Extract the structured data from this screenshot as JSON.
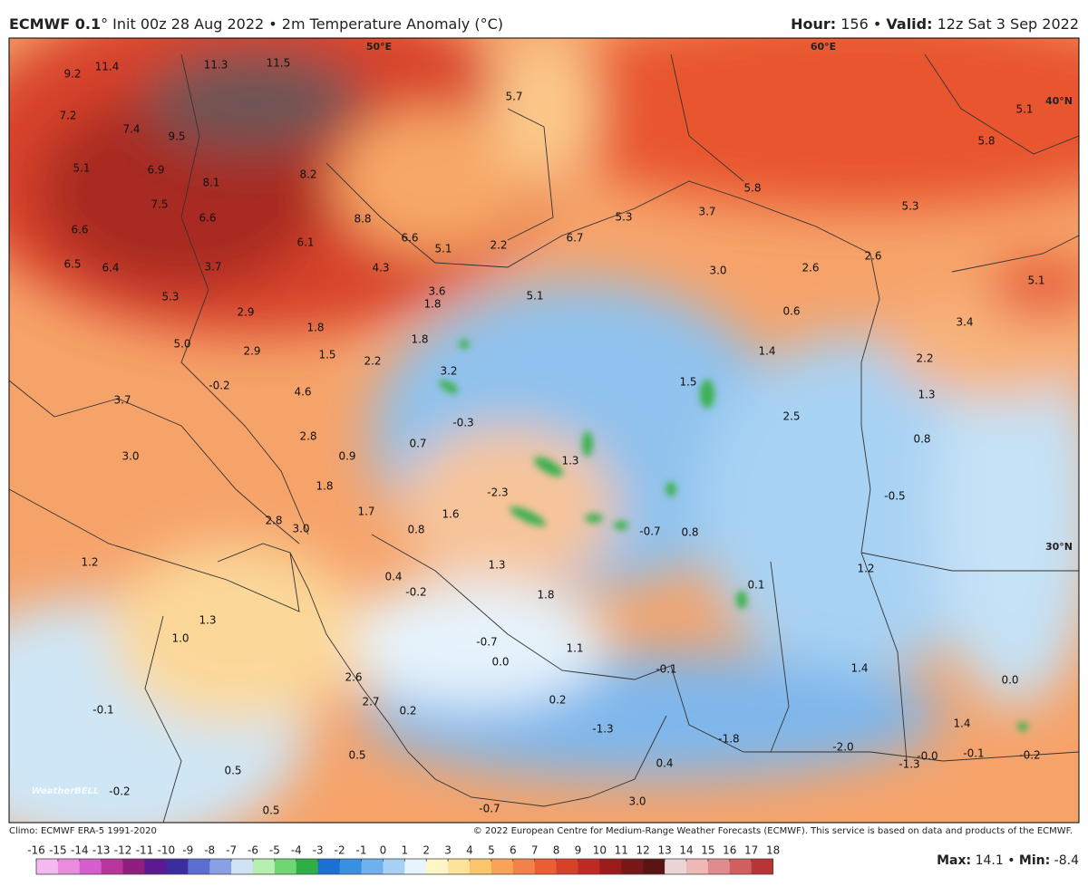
{
  "header": {
    "title_bold": "ECMWF 0.1",
    "title_rest": "° Init 00z 28 Aug 2022 • 2m Temperature Anomaly (°C)",
    "hour_label": "Hour:",
    "hour": "156",
    "separator": "•",
    "valid_label": "Valid:",
    "valid": "12z Sat 3 Sep 2022"
  },
  "map": {
    "graticule": [
      "50°E",
      "60°E",
      "40°N",
      "30°N"
    ],
    "labels": [
      "9.2",
      "11.4",
      "11.3",
      "11.5",
      "7.2",
      "7.4",
      "9.5",
      "5.7",
      "5.1",
      "5.8",
      "5.1",
      "6.9",
      "8.1",
      "8.2",
      "7.5",
      "6.6",
      "8.8",
      "5.8",
      "5.3",
      "6.6",
      "6.1",
      "6.6",
      "5.1",
      "2.2",
      "6.7",
      "5.3",
      "3.7",
      "6.5",
      "6.4",
      "3.7",
      "4.3",
      "3.0",
      "2.6",
      "2.6",
      "5.3",
      "3.6",
      "5.1",
      "1.8",
      "0.6",
      "5.1",
      "2.9",
      "1.8",
      "3.4",
      "5.0",
      "2.9",
      "1.5",
      "1.8",
      "1.4",
      "2.2",
      "3.2",
      "2.2",
      "-0.2",
      "4.6",
      "1.5",
      "1.3",
      "3.7",
      "2.5",
      "-0.3",
      "2.8",
      "0.7",
      "0.8",
      "3.0",
      "0.9",
      "1.3",
      "1.8",
      "-2.3",
      "-0.5",
      "1.7",
      "1.6",
      "2.8",
      "3.0",
      "0.8",
      "-0.7",
      "0.8",
      "1.2",
      "1.3",
      "1.2",
      "0.4",
      "-0.2",
      "1.8",
      "0.1",
      "1.3",
      "1.0",
      "-0.7",
      "1.1",
      "1.4",
      "0.0",
      "-0.1",
      "0.0",
      "2.6",
      "2.7",
      "0.2",
      "-0.1",
      "0.2",
      "-1.3",
      "1.4",
      "-1.8",
      "0.5",
      "-2.0",
      "-0.0",
      "-0.1",
      "-0.2",
      "-1.3",
      "0.5",
      "-0.2",
      "0.5",
      "-0.7",
      "3.0",
      "0.4"
    ],
    "logo": "WeatherBELL"
  },
  "footer": {
    "climo": "Climo: ECMWF ERA-5 1991-2020",
    "copyright": "© 2022 European Centre for Medium-Range Weather Forecasts (ECMWF). This service is based on data and products of the ECMWF."
  },
  "colorbar": {
    "ticks": [
      -16,
      -15,
      -14,
      -13,
      -12,
      -11,
      -10,
      -9,
      -8,
      -7,
      -6,
      -5,
      -4,
      -3,
      -2,
      -1,
      0,
      1,
      2,
      3,
      4,
      5,
      6,
      7,
      8,
      9,
      10,
      11,
      12,
      13,
      14,
      15,
      16,
      17,
      18
    ],
    "colors": [
      "#f5b8f0",
      "#e98ce0",
      "#d45fcc",
      "#b8359e",
      "#8e1f7e",
      "#5b1a8f",
      "#3b2d9e",
      "#5b6fd0",
      "#8aa0e6",
      "#cfe3f5",
      "#b6f0b0",
      "#6fd672",
      "#2fae45",
      "#1d6fd1",
      "#3a8fe0",
      "#6fb0ee",
      "#a6d0f5",
      "#e8f4fc",
      "#fff6c8",
      "#fde39a",
      "#fbc56e",
      "#f8a25a",
      "#f3814a",
      "#ea5d35",
      "#d9402a",
      "#c02a25",
      "#9c1c1e",
      "#781818",
      "#5a1414",
      "#e9d5d5",
      "#f0b7b7",
      "#e08c8c",
      "#d06060",
      "#b83535"
    ]
  },
  "stats": {
    "max_label": "Max:",
    "max": "14.1",
    "separator": "•",
    "min_label": "Min:",
    "min": "-8.4"
  }
}
